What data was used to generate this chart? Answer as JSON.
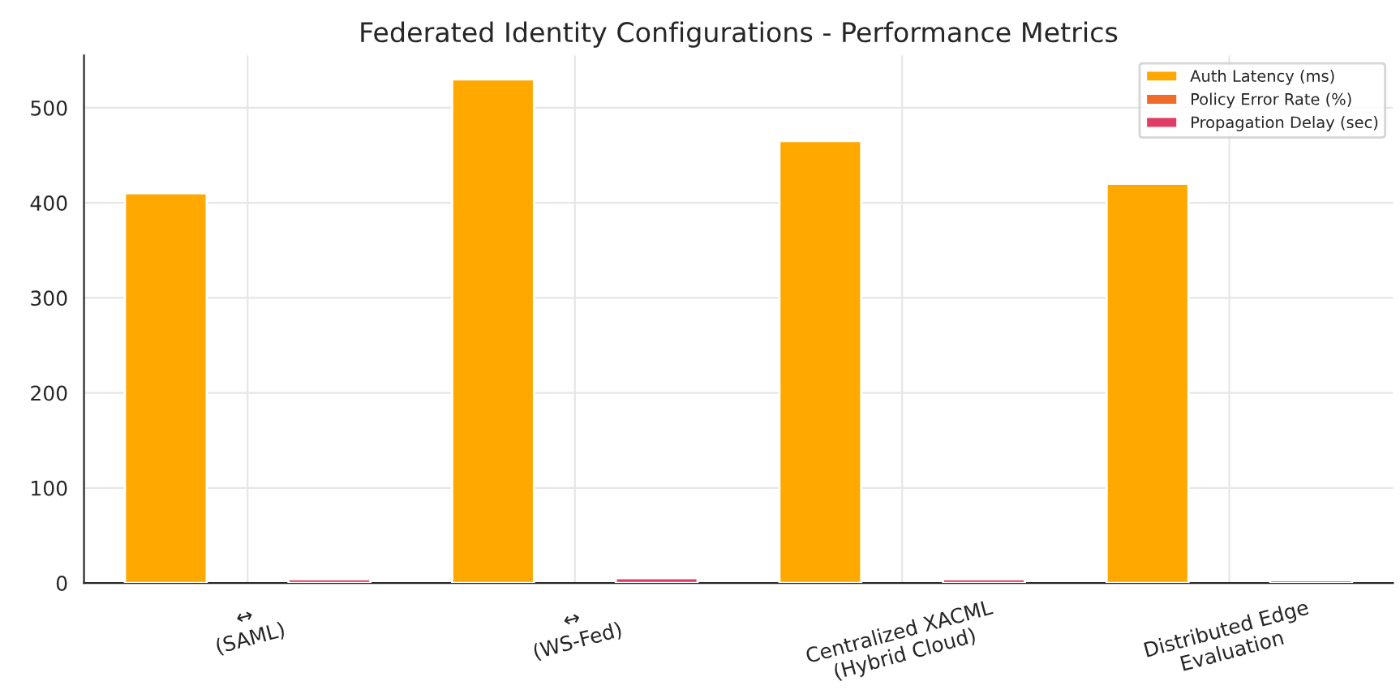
{
  "chart_data": {
    "type": "bar",
    "title": "Federated Identity Configurations - Performance Metrics",
    "categories": [
      "↔\n(SAML)",
      "↔\n(WS-Fed)",
      "Centralized XACML\n(Hybrid Cloud)",
      "Distributed Edge\nEvaluation"
    ],
    "series": [
      {
        "name": "Auth Latency (ms)",
        "color": "#ffa800",
        "values": [
          410,
          530,
          465,
          420
        ]
      },
      {
        "name": "Policy Error Rate (%)",
        "color": "#f06a28",
        "values": [
          null,
          null,
          null,
          null
        ]
      },
      {
        "name": "Propagation Delay (sec)",
        "color": "#e03c64",
        "values": [
          4,
          5,
          4,
          3
        ]
      }
    ],
    "ylim": [
      0,
      555
    ],
    "yticks": [
      0,
      100,
      200,
      300,
      400,
      500
    ],
    "grid": true,
    "legend": "top right"
  }
}
